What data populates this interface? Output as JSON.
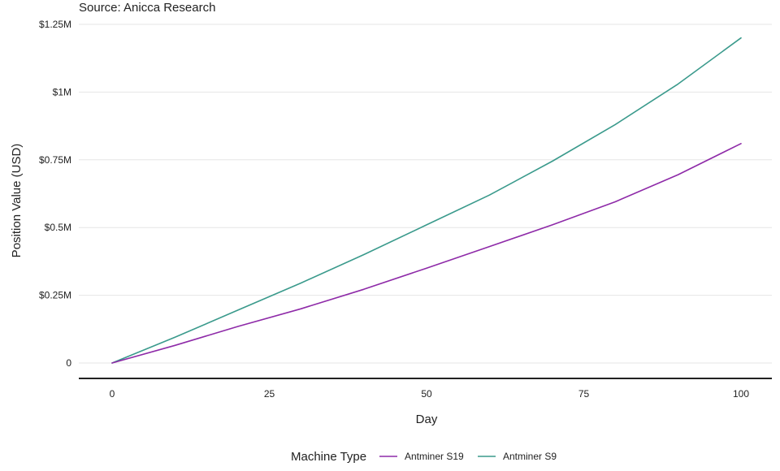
{
  "header": {
    "source": "Source: Anicca Research"
  },
  "chart_data": {
    "type": "line",
    "title": "",
    "xlabel": "Day",
    "ylabel": "Position Value (USD)",
    "xlim": [
      0,
      100
    ],
    "ylim": [
      0,
      1250000
    ],
    "x_ticks": [
      0,
      25,
      50,
      75,
      100
    ],
    "x_tick_labels": [
      "0",
      "25",
      "50",
      "75",
      "100"
    ],
    "y_ticks": [
      0,
      250000,
      500000,
      750000,
      1000000,
      1250000
    ],
    "y_tick_labels": [
      "0",
      "$0.25M",
      "$0.5M",
      "$0.75M",
      "$1M",
      "$1.25M"
    ],
    "grid": "horizontal",
    "legend": {
      "title": "Machine Type",
      "placement": "bottom"
    },
    "x": [
      0,
      10,
      20,
      30,
      40,
      50,
      60,
      70,
      80,
      90,
      100
    ],
    "series": [
      {
        "name": "Antminer S19",
        "color": "#8e2aa8",
        "values": [
          0,
          65000,
          135000,
          200000,
          272000,
          350000,
          430000,
          510000,
          595000,
          695000,
          810000
        ]
      },
      {
        "name": "Antminer S9",
        "color": "#3a9a8c",
        "values": [
          0,
          95000,
          195000,
          295000,
          400000,
          510000,
          620000,
          745000,
          880000,
          1030000,
          1200000
        ]
      }
    ]
  }
}
